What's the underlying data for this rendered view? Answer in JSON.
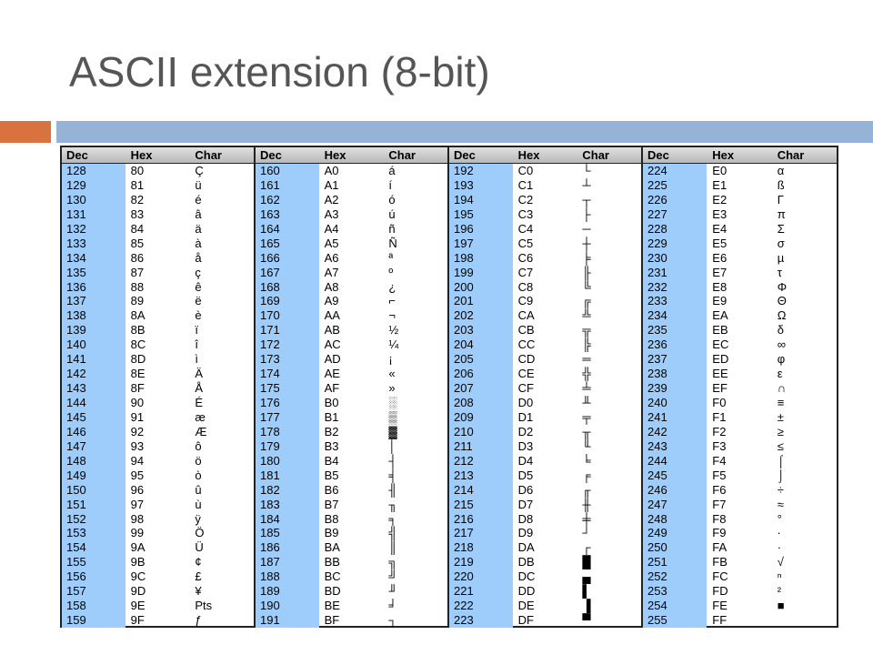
{
  "title": "ASCII extension (8-bit)",
  "table": {
    "header": [
      "Dec",
      "Hex",
      "Char"
    ],
    "blocks": [
      [
        [
          128,
          "80",
          "Ç"
        ],
        [
          129,
          "81",
          "ü"
        ],
        [
          130,
          "82",
          "é"
        ],
        [
          131,
          "83",
          "â"
        ],
        [
          132,
          "84",
          "ä"
        ],
        [
          133,
          "85",
          "à"
        ],
        [
          134,
          "86",
          "å"
        ],
        [
          135,
          "87",
          "ç"
        ],
        [
          136,
          "88",
          "ê"
        ],
        [
          137,
          "89",
          "ë"
        ],
        [
          138,
          "8A",
          "è"
        ],
        [
          139,
          "8B",
          "ï"
        ],
        [
          140,
          "8C",
          "î"
        ],
        [
          141,
          "8D",
          "ì"
        ],
        [
          142,
          "8E",
          "Ä"
        ],
        [
          143,
          "8F",
          "Å"
        ],
        [
          144,
          "90",
          "É"
        ],
        [
          145,
          "91",
          "æ"
        ],
        [
          146,
          "92",
          "Æ"
        ],
        [
          147,
          "93",
          "ô"
        ],
        [
          148,
          "94",
          "ö"
        ],
        [
          149,
          "95",
          "ò"
        ],
        [
          150,
          "96",
          "û"
        ],
        [
          151,
          "97",
          "ù"
        ],
        [
          152,
          "98",
          "ÿ"
        ],
        [
          153,
          "99",
          "Ö"
        ],
        [
          154,
          "9A",
          "Ü"
        ],
        [
          155,
          "9B",
          "¢"
        ],
        [
          156,
          "9C",
          "£"
        ],
        [
          157,
          "9D",
          "¥"
        ],
        [
          158,
          "9E",
          "Pts"
        ],
        [
          159,
          "9F",
          "ƒ"
        ]
      ],
      [
        [
          160,
          "A0",
          "á"
        ],
        [
          161,
          "A1",
          "í"
        ],
        [
          162,
          "A2",
          "ó"
        ],
        [
          163,
          "A3",
          "ú"
        ],
        [
          164,
          "A4",
          "ñ"
        ],
        [
          165,
          "A5",
          "Ñ"
        ],
        [
          166,
          "A6",
          "ª"
        ],
        [
          167,
          "A7",
          "º"
        ],
        [
          168,
          "A8",
          "¿"
        ],
        [
          169,
          "A9",
          "⌐"
        ],
        [
          170,
          "AA",
          "¬"
        ],
        [
          171,
          "AB",
          "½"
        ],
        [
          172,
          "AC",
          "¼"
        ],
        [
          173,
          "AD",
          "¡"
        ],
        [
          174,
          "AE",
          "«"
        ],
        [
          175,
          "AF",
          "»"
        ],
        [
          176,
          "B0",
          "░"
        ],
        [
          177,
          "B1",
          "▒"
        ],
        [
          178,
          "B2",
          "▓"
        ],
        [
          179,
          "B3",
          "│"
        ],
        [
          180,
          "B4",
          "┤"
        ],
        [
          181,
          "B5",
          "╡"
        ],
        [
          182,
          "B6",
          "╢"
        ],
        [
          183,
          "B7",
          "╖"
        ],
        [
          184,
          "B8",
          "╕"
        ],
        [
          185,
          "B9",
          "╣"
        ],
        [
          186,
          "BA",
          "║"
        ],
        [
          187,
          "BB",
          "╗"
        ],
        [
          188,
          "BC",
          "╝"
        ],
        [
          189,
          "BD",
          "╜"
        ],
        [
          190,
          "BE",
          "╛"
        ],
        [
          191,
          "BF",
          "┐"
        ]
      ],
      [
        [
          192,
          "C0",
          "└"
        ],
        [
          193,
          "C1",
          "┴"
        ],
        [
          194,
          "C2",
          "┬"
        ],
        [
          195,
          "C3",
          "├"
        ],
        [
          196,
          "C4",
          "─"
        ],
        [
          197,
          "C5",
          "┼"
        ],
        [
          198,
          "C6",
          "╞"
        ],
        [
          199,
          "C7",
          "╟"
        ],
        [
          200,
          "C8",
          "╚"
        ],
        [
          201,
          "C9",
          "╔"
        ],
        [
          202,
          "CA",
          "╩"
        ],
        [
          203,
          "CB",
          "╦"
        ],
        [
          204,
          "CC",
          "╠"
        ],
        [
          205,
          "CD",
          "═"
        ],
        [
          206,
          "CE",
          "╬"
        ],
        [
          207,
          "CF",
          "╧"
        ],
        [
          208,
          "D0",
          "╨"
        ],
        [
          209,
          "D1",
          "╤"
        ],
        [
          210,
          "D2",
          "╥"
        ],
        [
          211,
          "D3",
          "╙"
        ],
        [
          212,
          "D4",
          "╘"
        ],
        [
          213,
          "D5",
          "╒"
        ],
        [
          214,
          "D6",
          "╓"
        ],
        [
          215,
          "D7",
          "╫"
        ],
        [
          216,
          "D8",
          "╪"
        ],
        [
          217,
          "D9",
          "┘"
        ],
        [
          218,
          "DA",
          "┌"
        ],
        [
          219,
          "DB",
          "█"
        ],
        [
          220,
          "DC",
          "▄"
        ],
        [
          221,
          "DD",
          "▌"
        ],
        [
          222,
          "DE",
          "▐"
        ],
        [
          223,
          "DF",
          "▀"
        ]
      ],
      [
        [
          224,
          "E0",
          "α"
        ],
        [
          225,
          "E1",
          "ß"
        ],
        [
          226,
          "E2",
          "Γ"
        ],
        [
          227,
          "E3",
          "π"
        ],
        [
          228,
          "E4",
          "Σ"
        ],
        [
          229,
          "E5",
          "σ"
        ],
        [
          230,
          "E6",
          "µ"
        ],
        [
          231,
          "E7",
          "τ"
        ],
        [
          232,
          "E8",
          "Φ"
        ],
        [
          233,
          "E9",
          "Θ"
        ],
        [
          234,
          "EA",
          "Ω"
        ],
        [
          235,
          "EB",
          "δ"
        ],
        [
          236,
          "EC",
          "∞"
        ],
        [
          237,
          "ED",
          "φ"
        ],
        [
          238,
          "EE",
          "ε"
        ],
        [
          239,
          "EF",
          "∩"
        ],
        [
          240,
          "F0",
          "≡"
        ],
        [
          241,
          "F1",
          "±"
        ],
        [
          242,
          "F2",
          "≥"
        ],
        [
          243,
          "F3",
          "≤"
        ],
        [
          244,
          "F4",
          "⌠"
        ],
        [
          245,
          "F5",
          "⌡"
        ],
        [
          246,
          "F6",
          "÷"
        ],
        [
          247,
          "F7",
          "≈"
        ],
        [
          248,
          "F8",
          "°"
        ],
        [
          249,
          "F9",
          "∙"
        ],
        [
          250,
          "FA",
          "·"
        ],
        [
          251,
          "FB",
          "√"
        ],
        [
          252,
          "FC",
          "ⁿ"
        ],
        [
          253,
          "FD",
          "²"
        ],
        [
          254,
          "FE",
          "■"
        ],
        [
          255,
          "FF"
        ]
      ]
    ]
  }
}
